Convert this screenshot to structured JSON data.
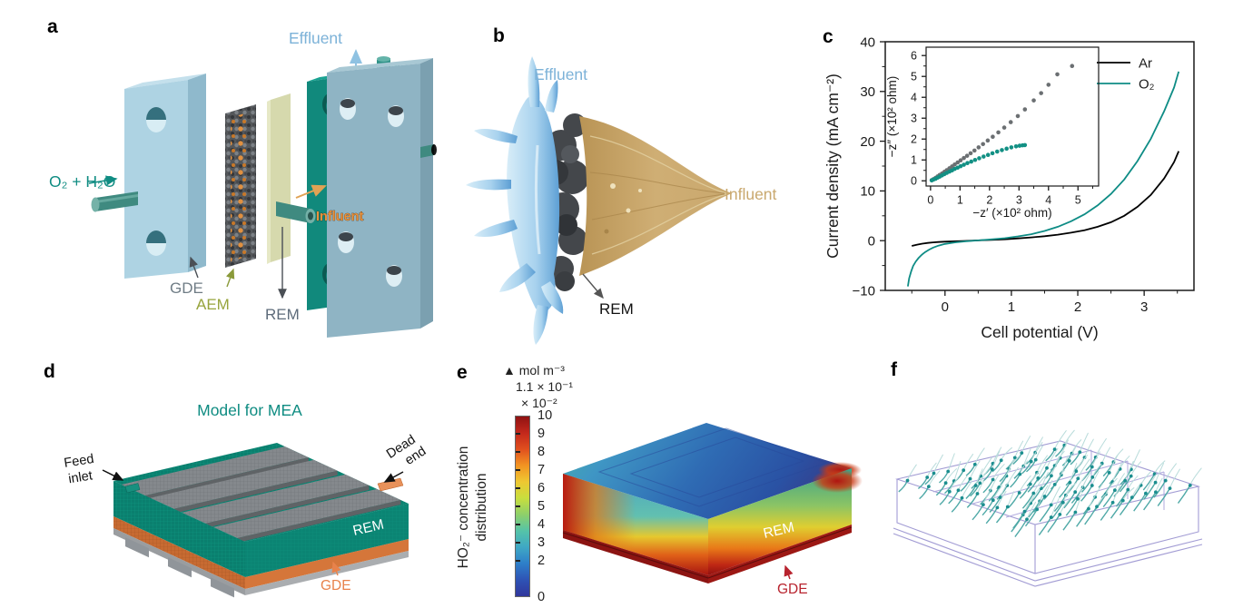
{
  "panels": {
    "a": {
      "label": "a",
      "effluent": "Effluent",
      "feed": "O₂ + H₂O",
      "influent": "Influent",
      "gde": "GDE",
      "aem": "AEM",
      "rem": "REM",
      "colors": {
        "effluent_text": "#7cb2d8",
        "feed_text": "#0f8c82",
        "influent_text": "#e8913c",
        "gde_text": "#6f7c85",
        "aem_text": "#97a43c",
        "rem_text": "#5d6b7a"
      }
    },
    "b": {
      "label": "b",
      "effluent": "Effluent",
      "influent": "Influent",
      "rem": "REM",
      "colors": {
        "effluent_text": "#7cb2d8",
        "influent_text": "#c9a86e",
        "rem_text": "#111111"
      }
    },
    "c": {
      "label": "c"
    },
    "d": {
      "label": "d",
      "title": "Model for MEA",
      "feed_inlet_line1": "Feed",
      "feed_inlet_line2": "inlet",
      "dead_end_line1": "Dead",
      "dead_end_line2": "end",
      "rem": "REM",
      "gde": "GDE",
      "colors": {
        "title": "#0f8c82",
        "gde_text": "#e8824b"
      }
    },
    "e": {
      "label": "e",
      "unit_header": "▲ mol m⁻³",
      "max_value": "1.1 × 10⁻¹",
      "scale": "× 10⁻²",
      "axis_title_line1": "HO₂⁻ concentration",
      "axis_title_line2": "distribution",
      "rem": "REM",
      "gde": "GDE",
      "colors": {
        "gde_text": "#b8232e",
        "rem_text": "#ffffff"
      }
    },
    "f": {
      "label": "f"
    }
  },
  "chart_data": [
    {
      "id": "lsv",
      "type": "line",
      "title": "",
      "xlabel": "Cell potential (V)",
      "ylabel": "Current density (mA cm⁻²)",
      "xlim": [
        -0.9,
        3.75
      ],
      "ylim": [
        -10,
        40
      ],
      "xticks": [
        0,
        1,
        2,
        3
      ],
      "yticks": [
        -10,
        0,
        10,
        20,
        30,
        40
      ],
      "grid": false,
      "legend_position": "top-right",
      "series": [
        {
          "name": "Ar",
          "color": "#000000",
          "style": "line",
          "x": [
            -0.5,
            -0.42,
            -0.34,
            -0.26,
            -0.18,
            -0.1,
            0,
            0.15,
            0.3,
            0.5,
            0.7,
            0.9,
            1.1,
            1.3,
            1.5,
            1.7,
            1.9,
            2.1,
            2.3,
            2.5,
            2.7,
            2.9,
            3.1,
            3.3,
            3.45,
            3.52
          ],
          "y": [
            -1.05,
            -0.8,
            -0.6,
            -0.45,
            -0.35,
            -0.27,
            -0.2,
            -0.12,
            -0.05,
            0.05,
            0.15,
            0.28,
            0.45,
            0.65,
            0.9,
            1.2,
            1.6,
            2.1,
            2.8,
            3.7,
            5.0,
            6.8,
            9.2,
            12.5,
            15.8,
            18.0
          ]
        },
        {
          "name": "O₂",
          "color": "#0e8c85",
          "style": "line",
          "x": [
            -0.56,
            -0.54,
            -0.51,
            -0.48,
            -0.44,
            -0.4,
            -0.35,
            -0.3,
            -0.24,
            -0.18,
            -0.1,
            0,
            0.15,
            0.3,
            0.5,
            0.7,
            0.9,
            1.1,
            1.3,
            1.5,
            1.7,
            1.9,
            2.1,
            2.3,
            2.5,
            2.7,
            2.9,
            3.1,
            3.3,
            3.45,
            3.52
          ],
          "y": [
            -9.2,
            -7.6,
            -6.2,
            -5.1,
            -4.2,
            -3.5,
            -2.85,
            -2.3,
            -1.8,
            -1.4,
            -1.0,
            -0.65,
            -0.35,
            -0.15,
            0.05,
            0.25,
            0.5,
            0.85,
            1.3,
            1.95,
            2.8,
            3.9,
            5.3,
            7.1,
            9.4,
            12.3,
            16.0,
            20.5,
            26.0,
            30.8,
            34.0
          ]
        }
      ]
    },
    {
      "id": "eis_inset",
      "type": "scatter",
      "title": "",
      "xlabel": "−z′ (×10² ohm)",
      "ylabel": "−z″ (×10² ohm)",
      "xlim": [
        -0.15,
        5.7
      ],
      "ylim": [
        -0.25,
        6.4
      ],
      "xticks": [
        0,
        1,
        2,
        3,
        4,
        5
      ],
      "yticks": [
        0,
        1,
        2,
        3,
        4,
        5,
        6
      ],
      "grid": false,
      "series": [
        {
          "name": "Ar",
          "color": "#6b6f72",
          "style": "scatter",
          "x": [
            0.04,
            0.1,
            0.17,
            0.24,
            0.31,
            0.39,
            0.47,
            0.55,
            0.64,
            0.73,
            0.82,
            0.92,
            1.02,
            1.13,
            1.24,
            1.36,
            1.49,
            1.63,
            1.78,
            1.94,
            2.11,
            2.3,
            2.5,
            2.72,
            2.96,
            3.2,
            3.5,
            3.75,
            4.0,
            4.3,
            4.8
          ],
          "y": [
            0.03,
            0.08,
            0.14,
            0.21,
            0.28,
            0.35,
            0.43,
            0.51,
            0.6,
            0.69,
            0.78,
            0.88,
            0.98,
            1.09,
            1.2,
            1.32,
            1.45,
            1.6,
            1.76,
            1.93,
            2.11,
            2.32,
            2.55,
            2.81,
            3.1,
            3.42,
            3.85,
            4.2,
            4.6,
            5.1,
            5.5
          ]
        },
        {
          "name": "O₂",
          "color": "#129084",
          "style": "scatter",
          "x": [
            0.04,
            0.1,
            0.17,
            0.24,
            0.31,
            0.39,
            0.47,
            0.55,
            0.64,
            0.73,
            0.82,
            0.92,
            1.02,
            1.13,
            1.25,
            1.38,
            1.51,
            1.65,
            1.8,
            1.95,
            2.1,
            2.26,
            2.42,
            2.58,
            2.74,
            2.9,
            3.02,
            3.12,
            3.2
          ],
          "y": [
            0.02,
            0.06,
            0.1,
            0.15,
            0.2,
            0.26,
            0.32,
            0.38,
            0.44,
            0.5,
            0.57,
            0.63,
            0.7,
            0.77,
            0.85,
            0.92,
            1.0,
            1.08,
            1.16,
            1.24,
            1.32,
            1.4,
            1.47,
            1.54,
            1.6,
            1.65,
            1.68,
            1.7,
            1.71
          ]
        }
      ]
    },
    {
      "id": "ho2_distribution",
      "type": "heatmap",
      "title": "HO₂⁻ concentration distribution",
      "unit": "mol m⁻³",
      "max_annotation": "1.1 × 10⁻¹",
      "scale_annotation": "× 10⁻²",
      "colorbar_range": [
        0,
        10
      ],
      "colorbar_ticks": [
        10,
        9,
        8,
        7,
        6,
        5,
        4,
        3,
        2,
        0
      ],
      "colormap": [
        "#30369c",
        "#2e53b5",
        "#2e7fc9",
        "#3fa8c4",
        "#55c3a8",
        "#8ed06a",
        "#c8de3e",
        "#eec832",
        "#f29422",
        "#e04f1e",
        "#c3281c",
        "#8f1212"
      ],
      "region_labels": [
        "REM",
        "GDE"
      ]
    }
  ]
}
